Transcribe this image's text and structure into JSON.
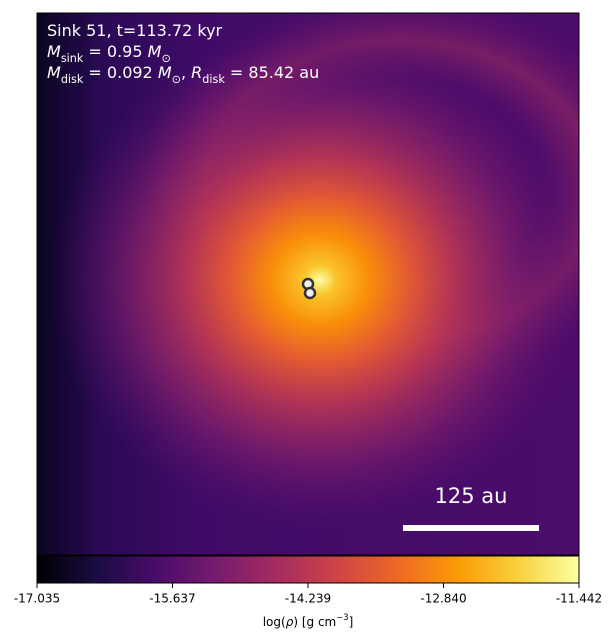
{
  "chart_data": {
    "type": "density-map",
    "annotations": [
      [
        {
          "text": "Sink 51, t=113.72 kyr"
        }
      ],
      [
        {
          "text": "M",
          "style": "italic"
        },
        {
          "text": "sink",
          "style": "sub"
        },
        {
          "text": " = 0.95 "
        },
        {
          "text": "M",
          "style": "italic"
        },
        {
          "text": "⊙",
          "style": "sub"
        }
      ],
      [
        {
          "text": "M",
          "style": "italic"
        },
        {
          "text": "disk",
          "style": "sub"
        },
        {
          "text": " = 0.092 "
        },
        {
          "text": "M",
          "style": "italic"
        },
        {
          "text": "⊙",
          "style": "sub"
        },
        {
          "text": ", "
        },
        {
          "text": "R",
          "style": "italic"
        },
        {
          "text": "disk",
          "style": "sub"
        },
        {
          "text": " = 85.42 au"
        }
      ]
    ],
    "scale_bar": "125 au",
    "colormap": "inferno",
    "clim": [
      -17.035,
      -11.442
    ],
    "cticks": [
      -17.035,
      -15.637,
      -14.239,
      {
        "value": -12.84,
        "label": "-12.840"
      },
      -11.442
    ],
    "colorbar_label": [
      {
        "text": "log("
      },
      {
        "text": "ρ",
        "style": "italic"
      },
      {
        "text": ") [g cm"
      },
      {
        "text": "−3",
        "style": "sup"
      },
      {
        "text": "]"
      }
    ]
  }
}
